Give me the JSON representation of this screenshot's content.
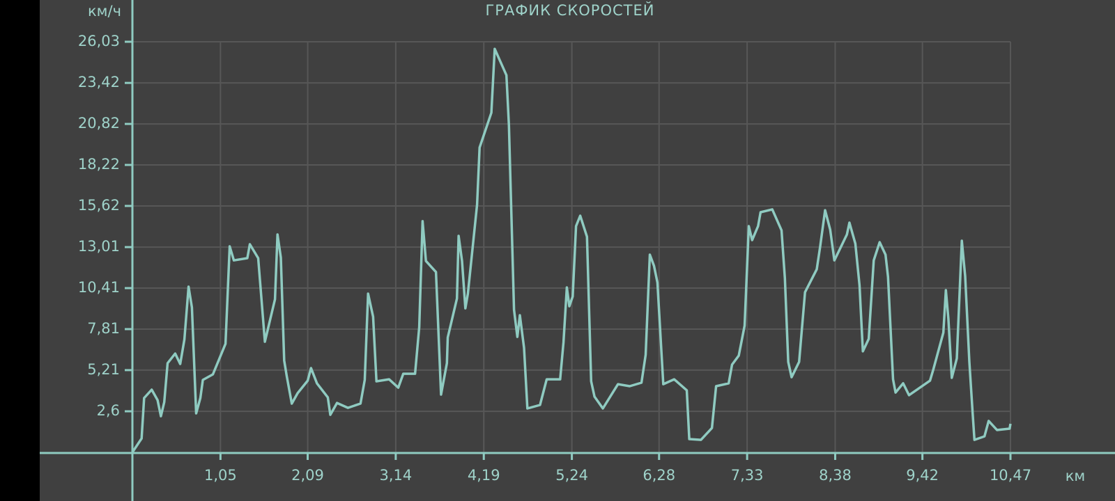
{
  "chart_data": {
    "type": "line",
    "title": "ГРАФИК СКОРОСТЕЙ",
    "y_label": "км/ч",
    "x_label": "км",
    "color": "#8fcbc1",
    "grid": true,
    "xlim": [
      0,
      10.47
    ],
    "ylim": [
      0,
      26.03
    ],
    "xticks": [
      {
        "value": 1.05,
        "label": "1,05"
      },
      {
        "value": 2.09,
        "label": "2,09"
      },
      {
        "value": 3.14,
        "label": "3,14"
      },
      {
        "value": 4.19,
        "label": "4,19"
      },
      {
        "value": 5.24,
        "label": "5,24"
      },
      {
        "value": 6.28,
        "label": "6,28"
      },
      {
        "value": 7.33,
        "label": "7,33"
      },
      {
        "value": 8.38,
        "label": "8,38"
      },
      {
        "value": 9.42,
        "label": "9,42"
      },
      {
        "value": 10.47,
        "label": "10,47"
      }
    ],
    "yticks": [
      {
        "value": 2.6,
        "label": "2,6"
      },
      {
        "value": 5.21,
        "label": "5,21"
      },
      {
        "value": 7.81,
        "label": "7,81"
      },
      {
        "value": 10.41,
        "label": "10,41"
      },
      {
        "value": 13.01,
        "label": "13,01"
      },
      {
        "value": 15.62,
        "label": "15,62"
      },
      {
        "value": 18.22,
        "label": "18,22"
      },
      {
        "value": 20.82,
        "label": "20,82"
      },
      {
        "value": 23.42,
        "label": "23,42"
      },
      {
        "value": 26.03,
        "label": "26,03"
      }
    ],
    "x": [
      0,
      0.11,
      0.14,
      0.23,
      0.3,
      0.34,
      0.38,
      0.42,
      0.51,
      0.57,
      0.62,
      0.67,
      0.71,
      0.76,
      0.81,
      0.84,
      0.96,
      1.11,
      1.16,
      1.21,
      1.37,
      1.4,
      1.5,
      1.58,
      1.7,
      1.73,
      1.77,
      1.81,
      1.84,
      1.9,
      1.97,
      2.09,
      2.13,
      2.2,
      2.33,
      2.36,
      2.44,
      2.57,
      2.72,
      2.77,
      2.81,
      2.87,
      2.91,
      3.06,
      3.17,
      3.23,
      3.37,
      3.42,
      3.46,
      3.5,
      3.62,
      3.68,
      3.75,
      3.76,
      3.87,
      3.89,
      3.93,
      3.97,
      4.0,
      4.11,
      4.14,
      4.28,
      4.32,
      4.46,
      4.49,
      4.55,
      4.59,
      4.62,
      4.67,
      4.71,
      4.86,
      4.94,
      5.1,
      5.14,
      5.18,
      5.21,
      5.25,
      5.29,
      5.34,
      5.42,
      5.47,
      5.51,
      5.61,
      5.79,
      5.93,
      6.07,
      6.12,
      6.17,
      6.22,
      6.26,
      6.33,
      6.46,
      6.61,
      6.64,
      6.78,
      6.91,
      6.96,
      7.11,
      7.15,
      7.23,
      7.3,
      7.35,
      7.39,
      7.46,
      7.49,
      7.63,
      7.74,
      7.78,
      7.82,
      7.86,
      7.95,
      8.02,
      8.16,
      8.2,
      8.26,
      8.32,
      8.37,
      8.52,
      8.55,
      8.62,
      8.67,
      8.71,
      8.78,
      8.84,
      8.91,
      8.98,
      9.01,
      9.07,
      9.1,
      9.19,
      9.26,
      9.51,
      9.55,
      9.67,
      9.7,
      9.73,
      9.77,
      9.83,
      9.89,
      9.93,
      9.98,
      10.02,
      10.04,
      10.16,
      10.21,
      10.31,
      10.46,
      10.47
    ],
    "values": [
      0,
      0.88,
      3.44,
      3.97,
      3.31,
      2.29,
      3.18,
      5.65,
      6.26,
      5.6,
      7.15,
      10.5,
      9.18,
      2.47,
      3.44,
      4.59,
      4.94,
      6.88,
      13.06,
      12.17,
      12.31,
      13.19,
      12.31,
      7.01,
      9.7,
      13.81,
      12.35,
      5.82,
      4.85,
      3.09,
      3.75,
      4.54,
      5.34,
      4.37,
      3.48,
      2.38,
      3.13,
      2.82,
      3.09,
      4.59,
      10.06,
      8.6,
      4.5,
      4.63,
      4.1,
      4.98,
      4.98,
      7.94,
      14.65,
      12.13,
      11.43,
      3.66,
      5.65,
      7.28,
      9.75,
      13.72,
      12.13,
      9.13,
      10.06,
      15.7,
      19.32,
      21.53,
      25.58,
      23.91,
      20.73,
      9.04,
      7.32,
      8.69,
      6.62,
      2.78,
      3.0,
      4.63,
      4.63,
      6.97,
      10.45,
      9.26,
      9.88,
      14.34,
      15.0,
      13.67,
      4.5,
      3.53,
      2.78,
      4.32,
      4.19,
      4.41,
      6.18,
      12.53,
      11.82,
      10.76,
      4.32,
      4.63,
      3.93,
      0.84,
      0.79,
      1.54,
      4.19,
      4.37,
      5.56,
      6.13,
      8.03,
      14.34,
      13.45,
      14.34,
      15.22,
      15.4,
      14.07,
      11.03,
      5.73,
      4.76,
      5.73,
      10.15,
      11.6,
      13.01,
      15.35,
      14.12,
      12.17,
      13.81,
      14.56,
      13.23,
      10.59,
      6.4,
      7.19,
      12.17,
      13.32,
      12.53,
      11.12,
      4.63,
      3.79,
      4.37,
      3.62,
      4.54,
      5.25,
      7.59,
      10.28,
      8.47,
      4.72,
      5.95,
      13.41,
      11.16,
      5.73,
      2.43,
      0.79,
      1.01,
      1.99,
      1.41,
      1.5,
      1.81
    ]
  }
}
